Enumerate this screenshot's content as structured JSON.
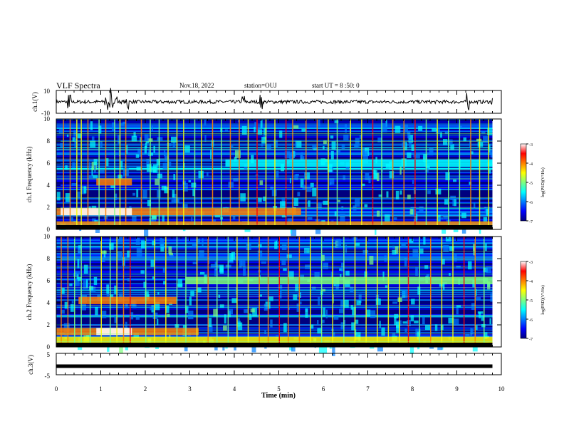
{
  "header": {
    "title": "VLF Spectra",
    "date": "Nov.18, 2022",
    "station": "station=OUJ",
    "start": "start UT = 8 :50: 0"
  },
  "colormap": [
    "#00007f",
    "#0000ff",
    "#007fff",
    "#00ffff",
    "#7fff7f",
    "#ffff00",
    "#ff7f00",
    "#ff0000",
    "#ffffff"
  ],
  "chart_data": [
    {
      "type": "line",
      "name": "ch1-waveform",
      "ylabel": "ch.1(V)",
      "ylim": [
        -10,
        10
      ],
      "yticks": [
        "10",
        "-10"
      ],
      "xlim": [
        0,
        10
      ],
      "bursts_min": [
        0.28,
        0.3,
        1.1,
        1.15,
        1.2,
        1.25,
        1.35,
        1.6,
        4.2,
        4.6,
        9.25,
        9.8
      ]
    },
    {
      "type": "heatmap",
      "name": "ch1-spectrogram",
      "ylabel": "ch.1 Frequency (kHz)",
      "ylim": [
        0,
        10
      ],
      "yticks": [
        "0",
        "2",
        "4",
        "6",
        "8",
        "10"
      ],
      "xlim": [
        0,
        10
      ],
      "colorbar": {
        "label": "log(PSD)(V²/Hz)",
        "range": [
          -7,
          -3
        ],
        "ticks": [
          "-3",
          "-4",
          "-5",
          "-6",
          "-7"
        ]
      },
      "bands_khz": [
        {
          "f": 1.6,
          "from": 0,
          "to": 5.5,
          "level": 0.78
        },
        {
          "f": 1.6,
          "from": 0.1,
          "to": 1.7,
          "level": 0.95
        },
        {
          "f": 4.3,
          "from": 0.9,
          "to": 1.7,
          "level": 0.7
        },
        {
          "f": 0.4,
          "from": 0,
          "to": 9.8,
          "level": 0.7
        },
        {
          "f": 6.0,
          "from": 3.8,
          "to": 9.8,
          "level": 0.42
        }
      ],
      "spikes_min": [
        0.15,
        0.3,
        0.45,
        0.55,
        0.7,
        0.95,
        1.1,
        1.3,
        1.42,
        1.55,
        1.9,
        2.1,
        2.3,
        2.5,
        2.7,
        2.85,
        3.1,
        3.25,
        3.5,
        3.7,
        3.9,
        4.1,
        4.3,
        4.5,
        4.7,
        4.9,
        5.15,
        5.3,
        5.6,
        5.85,
        6.1,
        6.3,
        6.6,
        6.85,
        7.1,
        7.3,
        7.55,
        7.8,
        8.05,
        8.3,
        8.55,
        8.8,
        9.05,
        9.3,
        9.5,
        9.7
      ]
    },
    {
      "type": "heatmap",
      "name": "ch2-spectrogram",
      "ylabel": "ch.2 Frequency (kHz)",
      "ylim": [
        0,
        10
      ],
      "yticks": [
        "0",
        "2",
        "4",
        "6",
        "8",
        "10"
      ],
      "xlim": [
        0,
        10
      ],
      "colorbar": {
        "label": "log(PSD)(V²/Hz)",
        "range": [
          -7,
          -3
        ],
        "ticks": [
          "-3",
          "-4",
          "-5",
          "-6",
          "-7"
        ]
      },
      "bands_khz": [
        {
          "f": 1.4,
          "from": 0,
          "to": 3.2,
          "level": 0.78
        },
        {
          "f": 1.4,
          "from": 0.9,
          "to": 1.7,
          "level": 0.95
        },
        {
          "f": 4.2,
          "from": 0.5,
          "to": 2.7,
          "level": 0.7
        },
        {
          "f": 6.0,
          "from": 2.9,
          "to": 9.8,
          "level": 0.55
        },
        {
          "f": 0.6,
          "from": 0,
          "to": 9.8,
          "level": 0.6
        }
      ],
      "spikes_min": [
        0.1,
        0.25,
        0.4,
        0.55,
        0.75,
        1.0,
        1.2,
        1.35,
        1.5,
        1.65,
        2.0,
        2.2,
        2.45,
        2.7,
        2.9,
        3.15,
        3.4,
        3.6,
        3.85,
        4.05,
        4.3,
        4.55,
        4.75,
        5.0,
        5.2,
        5.45,
        5.7,
        5.95,
        6.2,
        6.45,
        6.7,
        6.95,
        7.2,
        7.45,
        7.7,
        7.9,
        8.15,
        8.4,
        8.65,
        8.9,
        9.15,
        9.4,
        9.6
      ]
    },
    {
      "type": "line",
      "name": "ch3-waveform",
      "ylabel": "ch.3(V)",
      "ylim": [
        -5,
        5
      ],
      "yticks": [
        "5",
        "-5"
      ],
      "xlim": [
        0,
        10
      ],
      "level": -1.0,
      "xlabel": "Time (min)",
      "xticks": [
        "0",
        "1",
        "2",
        "3",
        "4",
        "5",
        "6",
        "7",
        "8",
        "9",
        "10"
      ]
    }
  ]
}
